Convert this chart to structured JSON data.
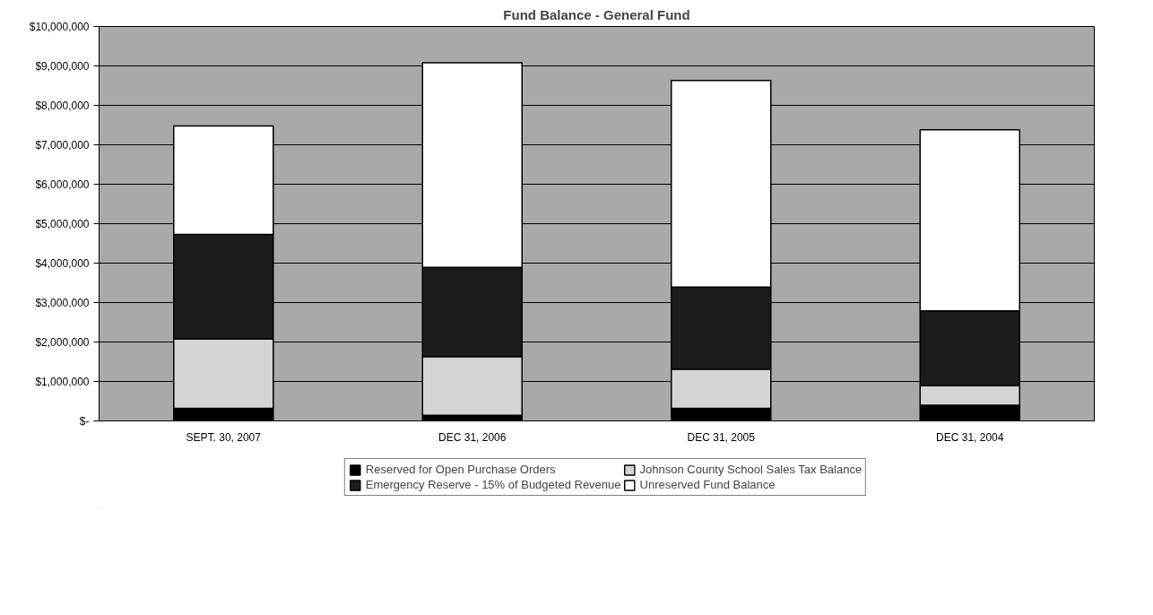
{
  "chart_data": {
    "type": "bar",
    "stacked": true,
    "title": "Fund Balance - General Fund",
    "categories": [
      "SEPT. 30, 2007",
      "DEC 31, 2006",
      "DEC 31, 2005",
      "DEC 31, 2004"
    ],
    "series": [
      {
        "name": "Reserved for Open Purchase Orders",
        "color": "#000000",
        "values": [
          320000,
          140000,
          320000,
          400000
        ]
      },
      {
        "name": "Johnson County School Sales Tax Balance",
        "color": "#d4d4d4",
        "values": [
          1760000,
          1490000,
          990000,
          490000
        ]
      },
      {
        "name": "Emergency Reserve - 15% of Budgeted Revenue",
        "color": "#1c1c1c",
        "values": [
          2650000,
          2260000,
          2080000,
          1900000
        ]
      },
      {
        "name": "Unreserved Fund Balance",
        "color": "#ffffff",
        "values": [
          2750000,
          5190000,
          5240000,
          4590000
        ]
      }
    ],
    "ylim": [
      0,
      10000000
    ],
    "yticks": [
      {
        "value": 0,
        "label": "$-"
      },
      {
        "value": 1000000,
        "label": "$1,000,000"
      },
      {
        "value": 2000000,
        "label": "$2,000,000"
      },
      {
        "value": 3000000,
        "label": "$3,000,000"
      },
      {
        "value": 4000000,
        "label": "$4,000,000"
      },
      {
        "value": 5000000,
        "label": "$5,000,000"
      },
      {
        "value": 6000000,
        "label": "$6,000,000"
      },
      {
        "value": 7000000,
        "label": "$7,000,000"
      },
      {
        "value": 8000000,
        "label": "$8,000,000"
      },
      {
        "value": 9000000,
        "label": "$9,000,000"
      },
      {
        "value": 10000000,
        "label": "$10,000,000"
      }
    ],
    "grid": "y",
    "legend": "bottom"
  }
}
